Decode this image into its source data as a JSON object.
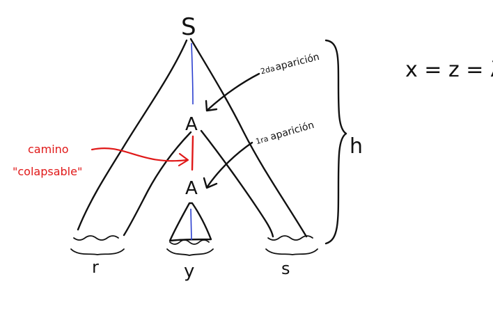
{
  "labels": {
    "root": "S",
    "upper_node": "A",
    "lower_node": "A",
    "second_occurrence": [
      "2da",
      "aparición"
    ],
    "first_occurrence": [
      "1ra",
      "aparición"
    ],
    "collapsible_path": [
      "camino",
      "\"colapsable\""
    ],
    "height": "h",
    "segment_r": "r",
    "segment_y": "y",
    "segment_s": "s",
    "equation": "x = z = λ"
  },
  "colors": {
    "ink": "#111111",
    "red": "#e01818",
    "blue": "#2b3fcf",
    "background": "#ffffff"
  }
}
